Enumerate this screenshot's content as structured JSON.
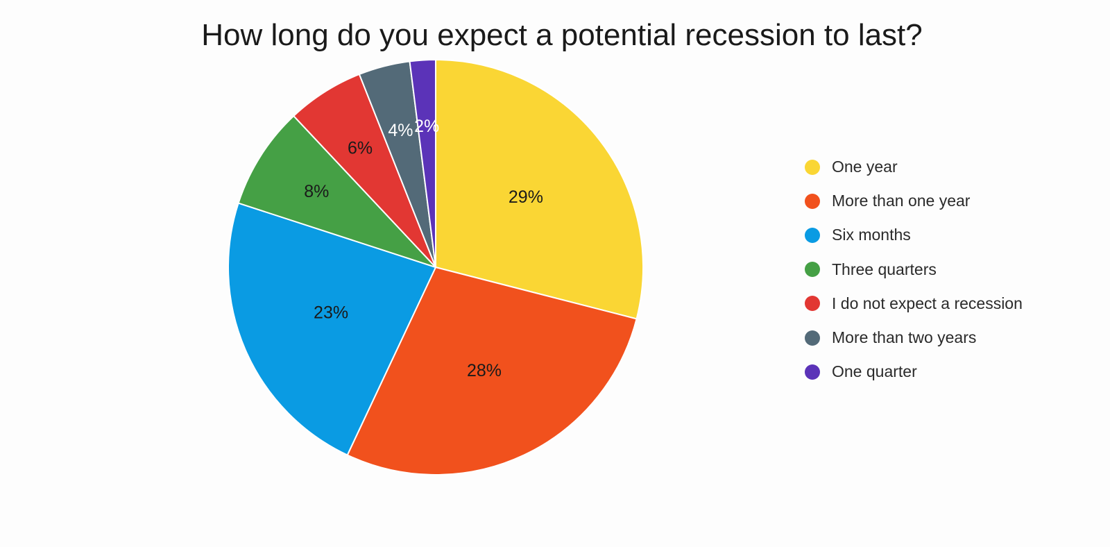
{
  "chart_data": {
    "type": "pie",
    "title": "How long do you expect a potential recession to last?",
    "legend_position": "right",
    "slices": [
      {
        "label": "One year",
        "value": 29,
        "display": "29%",
        "color": "#fad634",
        "label_color": "#1a1a1a"
      },
      {
        "label": "More than one year",
        "value": 28,
        "display": "28%",
        "color": "#f1511d",
        "label_color": "#1a1a1a"
      },
      {
        "label": "Six months",
        "value": 23,
        "display": "23%",
        "color": "#0a9be3",
        "label_color": "#1a1a1a"
      },
      {
        "label": "Three quarters",
        "value": 8,
        "display": "8%",
        "color": "#45a045",
        "label_color": "#1a1a1a"
      },
      {
        "label": "I do not expect a recession",
        "value": 6,
        "display": "6%",
        "color": "#e23733",
        "label_color": "#1a1a1a"
      },
      {
        "label": "More than two years",
        "value": 4,
        "display": "4%",
        "color": "#536a78",
        "label_color": "#ffffff"
      },
      {
        "label": "One quarter",
        "value": 2,
        "display": "2%",
        "color": "#5b33b8",
        "label_color": "#ffffff"
      }
    ]
  }
}
